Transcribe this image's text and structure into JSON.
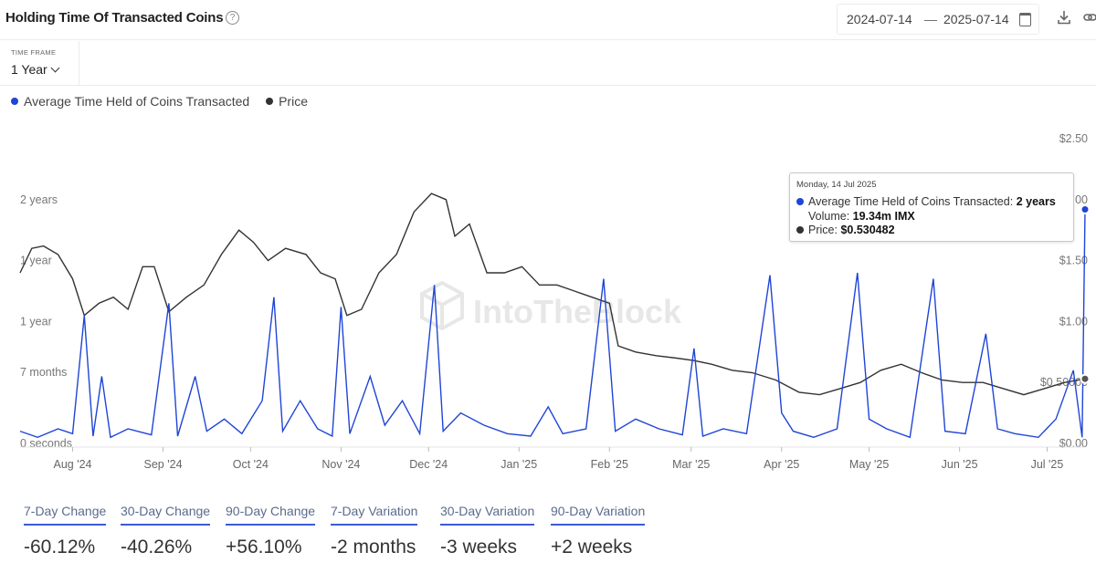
{
  "header": {
    "title": "Holding Time Of Transacted Coins",
    "help_icon": "question-circle-icon",
    "date_from": "2024-07-14",
    "date_separator": "—",
    "date_to": "2025-07-14",
    "calendar_icon": "calendar-icon",
    "download_icon": "download-icon",
    "share_icon": "link-icon"
  },
  "timeframe": {
    "label": "TIME FRAME",
    "value": "1 Year"
  },
  "legend": [
    {
      "label": "Average Time Held of Coins Transacted",
      "color": "#1f45d6"
    },
    {
      "label": "Price",
      "color": "#333333"
    }
  ],
  "watermark": "IntoTheBlock",
  "tooltip": {
    "date": "Monday, 14 Jul 2025",
    "row1_label": "Average Time Held of Coins Transacted:",
    "row1_value": "2 years",
    "row2_label": "Volume:",
    "row2_value": "19.34m IMX",
    "row3_label": "Price:",
    "row3_value": "$0.530482"
  },
  "stats": [
    {
      "label": "7-Day Change",
      "value": "-60.12%"
    },
    {
      "label": "30-Day Change",
      "value": "-40.26%"
    },
    {
      "label": "90-Day Change",
      "value": "+56.10%"
    },
    {
      "label": "7-Day Variation",
      "value": "-2 months"
    },
    {
      "label": "30-Day Variation",
      "value": "-3 weeks"
    },
    {
      "label": "90-Day Variation",
      "value": "+2 weeks"
    }
  ],
  "chart_data": {
    "type": "line",
    "x_range": [
      "2024-07-14",
      "2025-07-14"
    ],
    "x_ticks": [
      "Aug '24",
      "Sep '24",
      "Oct '24",
      "Nov '24",
      "Dec '24",
      "Jan '25",
      "Feb '25",
      "Mar '25",
      "Apr '25",
      "May '25",
      "Jun '25",
      "Jul '25"
    ],
    "left_axis": {
      "ticks": [
        "0 seconds",
        "7 months",
        "1 year",
        "1 year",
        "2 years"
      ]
    },
    "right_axis": {
      "ticks": [
        "$0.00",
        "$0.50000",
        "$1.00",
        "$1.50",
        "$2.00",
        "$2.50"
      ],
      "range": [
        0,
        2.5
      ]
    },
    "grid": false,
    "legend_position": "top-left",
    "colors": {
      "holding_time": "#1f45d6",
      "price": "#333333"
    },
    "series": [
      {
        "name": "Average Time Held of Coins Transacted",
        "axis": "left",
        "unit": "years",
        "points": [
          [
            "2024-07-14",
            0.1
          ],
          [
            "2024-07-20",
            0.05
          ],
          [
            "2024-07-27",
            0.12
          ],
          [
            "2024-08-01",
            0.08
          ],
          [
            "2024-08-05",
            1.05
          ],
          [
            "2024-08-08",
            0.06
          ],
          [
            "2024-08-11",
            0.55
          ],
          [
            "2024-08-14",
            0.05
          ],
          [
            "2024-08-20",
            0.12
          ],
          [
            "2024-08-28",
            0.07
          ],
          [
            "2024-09-03",
            1.15
          ],
          [
            "2024-09-06",
            0.06
          ],
          [
            "2024-09-12",
            0.55
          ],
          [
            "2024-09-16",
            0.1
          ],
          [
            "2024-09-22",
            0.2
          ],
          [
            "2024-09-28",
            0.08
          ],
          [
            "2024-10-05",
            0.35
          ],
          [
            "2024-10-09",
            1.2
          ],
          [
            "2024-10-12",
            0.1
          ],
          [
            "2024-10-18",
            0.35
          ],
          [
            "2024-10-24",
            0.12
          ],
          [
            "2024-10-29",
            0.06
          ],
          [
            "2024-11-01",
            1.12
          ],
          [
            "2024-11-04",
            0.08
          ],
          [
            "2024-11-11",
            0.55
          ],
          [
            "2024-11-16",
            0.15
          ],
          [
            "2024-11-22",
            0.35
          ],
          [
            "2024-11-28",
            0.08
          ],
          [
            "2024-12-03",
            1.3
          ],
          [
            "2024-12-06",
            0.1
          ],
          [
            "2024-12-12",
            0.25
          ],
          [
            "2024-12-20",
            0.15
          ],
          [
            "2024-12-28",
            0.08
          ],
          [
            "2025-01-05",
            0.06
          ],
          [
            "2025-01-11",
            0.3
          ],
          [
            "2025-01-16",
            0.08
          ],
          [
            "2025-01-24",
            0.12
          ],
          [
            "2025-01-30",
            1.35
          ],
          [
            "2025-02-03",
            0.1
          ],
          [
            "2025-02-10",
            0.2
          ],
          [
            "2025-02-18",
            0.12
          ],
          [
            "2025-02-26",
            0.07
          ],
          [
            "2025-03-02",
            0.78
          ],
          [
            "2025-03-05",
            0.06
          ],
          [
            "2025-03-12",
            0.12
          ],
          [
            "2025-03-20",
            0.08
          ],
          [
            "2025-03-28",
            1.38
          ],
          [
            "2025-04-01",
            0.25
          ],
          [
            "2025-04-05",
            0.1
          ],
          [
            "2025-04-12",
            0.05
          ],
          [
            "2025-04-20",
            0.12
          ],
          [
            "2025-04-27",
            1.4
          ],
          [
            "2025-05-01",
            0.2
          ],
          [
            "2025-05-07",
            0.12
          ],
          [
            "2025-05-15",
            0.05
          ],
          [
            "2025-05-23",
            1.35
          ],
          [
            "2025-05-27",
            0.1
          ],
          [
            "2025-06-03",
            0.08
          ],
          [
            "2025-06-10",
            0.9
          ],
          [
            "2025-06-14",
            0.12
          ],
          [
            "2025-06-20",
            0.08
          ],
          [
            "2025-06-28",
            0.05
          ],
          [
            "2025-07-04",
            0.2
          ],
          [
            "2025-07-10",
            0.6
          ],
          [
            "2025-07-13",
            0.05
          ],
          [
            "2025-07-14",
            1.92
          ]
        ]
      },
      {
        "name": "Price",
        "axis": "right",
        "unit": "USD",
        "points": [
          [
            "2024-07-14",
            1.4
          ],
          [
            "2024-07-18",
            1.6
          ],
          [
            "2024-07-22",
            1.62
          ],
          [
            "2024-07-27",
            1.55
          ],
          [
            "2024-08-01",
            1.35
          ],
          [
            "2024-08-05",
            1.05
          ],
          [
            "2024-08-10",
            1.15
          ],
          [
            "2024-08-15",
            1.2
          ],
          [
            "2024-08-20",
            1.1
          ],
          [
            "2024-08-25",
            1.45
          ],
          [
            "2024-08-29",
            1.45
          ],
          [
            "2024-09-03",
            1.08
          ],
          [
            "2024-09-09",
            1.2
          ],
          [
            "2024-09-15",
            1.3
          ],
          [
            "2024-09-21",
            1.55
          ],
          [
            "2024-09-27",
            1.75
          ],
          [
            "2024-10-02",
            1.65
          ],
          [
            "2024-10-07",
            1.5
          ],
          [
            "2024-10-13",
            1.6
          ],
          [
            "2024-10-20",
            1.55
          ],
          [
            "2024-10-25",
            1.4
          ],
          [
            "2024-10-30",
            1.35
          ],
          [
            "2024-11-03",
            1.05
          ],
          [
            "2024-11-08",
            1.1
          ],
          [
            "2024-11-14",
            1.4
          ],
          [
            "2024-11-20",
            1.55
          ],
          [
            "2024-11-26",
            1.9
          ],
          [
            "2024-12-02",
            2.05
          ],
          [
            "2024-12-07",
            2.0
          ],
          [
            "2024-12-10",
            1.7
          ],
          [
            "2024-12-15",
            1.8
          ],
          [
            "2024-12-21",
            1.4
          ],
          [
            "2024-12-27",
            1.4
          ],
          [
            "2025-01-02",
            1.45
          ],
          [
            "2025-01-08",
            1.3
          ],
          [
            "2025-01-14",
            1.3
          ],
          [
            "2025-01-20",
            1.25
          ],
          [
            "2025-01-26",
            1.2
          ],
          [
            "2025-02-01",
            1.15
          ],
          [
            "2025-02-04",
            0.8
          ],
          [
            "2025-02-10",
            0.75
          ],
          [
            "2025-02-17",
            0.72
          ],
          [
            "2025-02-24",
            0.7
          ],
          [
            "2025-03-02",
            0.68
          ],
          [
            "2025-03-08",
            0.65
          ],
          [
            "2025-03-15",
            0.6
          ],
          [
            "2025-03-22",
            0.58
          ],
          [
            "2025-03-30",
            0.52
          ],
          [
            "2025-04-07",
            0.42
          ],
          [
            "2025-04-14",
            0.4
          ],
          [
            "2025-04-21",
            0.45
          ],
          [
            "2025-04-28",
            0.5
          ],
          [
            "2025-05-05",
            0.6
          ],
          [
            "2025-05-12",
            0.65
          ],
          [
            "2025-05-19",
            0.58
          ],
          [
            "2025-05-26",
            0.52
          ],
          [
            "2025-06-02",
            0.5
          ],
          [
            "2025-06-09",
            0.5
          ],
          [
            "2025-06-16",
            0.45
          ],
          [
            "2025-06-23",
            0.4
          ],
          [
            "2025-06-30",
            0.45
          ],
          [
            "2025-07-07",
            0.5
          ],
          [
            "2025-07-14",
            0.53
          ]
        ]
      }
    ]
  }
}
